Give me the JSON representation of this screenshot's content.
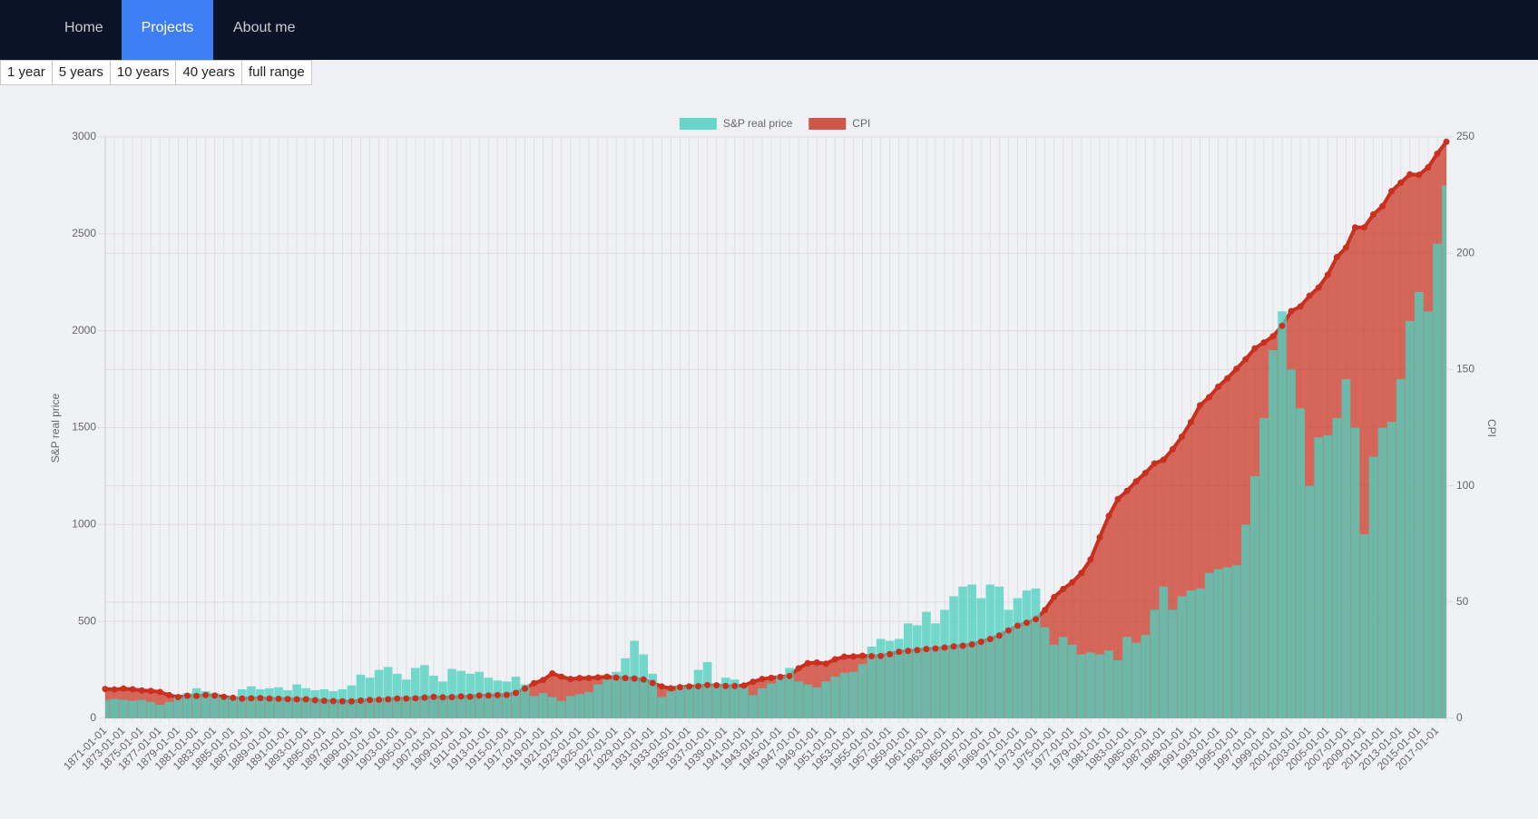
{
  "nav": [
    "Home",
    "Projects",
    "About me"
  ],
  "nav_active": 1,
  "range_buttons": [
    "1 year",
    "5 years",
    "10 years",
    "40 years",
    "full range"
  ],
  "chart_data": {
    "type": "bar",
    "ylabel": "S&P real price",
    "y2label": "CPI",
    "legend": "top",
    "grid": true,
    "ylim": [
      0,
      3000
    ],
    "yticks": [
      0,
      500,
      1000,
      1500,
      2000,
      2500,
      3000
    ],
    "y2lim": [
      0,
      250
    ],
    "y2ticks": [
      0,
      50,
      100,
      150,
      200,
      250
    ],
    "categories": [
      "1871-01-01",
      null,
      "1873-01-01",
      null,
      "1875-01-01",
      null,
      "1877-01-01",
      null,
      "1879-01-01",
      null,
      "1881-01-01",
      null,
      "1883-01-01",
      null,
      "1885-01-01",
      null,
      "1887-01-01",
      null,
      "1889-01-01",
      null,
      "1891-01-01",
      null,
      "1893-01-01",
      null,
      "1895-01-01",
      null,
      "1897-01-01",
      null,
      "1899-01-01",
      null,
      "1901-01-01",
      null,
      "1903-01-01",
      null,
      "1905-01-01",
      null,
      "1907-01-01",
      null,
      "1909-01-01",
      null,
      "1911-01-01",
      null,
      "1913-01-01",
      null,
      "1915-01-01",
      null,
      "1917-01-01",
      null,
      "1919-01-01",
      null,
      "1921-01-01",
      null,
      "1923-01-01",
      null,
      "1925-01-01",
      null,
      "1927-01-01",
      null,
      "1929-01-01",
      null,
      "1931-01-01",
      null,
      "1933-01-01",
      null,
      "1935-01-01",
      null,
      "1937-01-01",
      null,
      "1939-01-01",
      null,
      "1941-01-01",
      null,
      "1943-01-01",
      null,
      "1945-01-01",
      null,
      "1947-01-01",
      null,
      "1949-01-01",
      null,
      "1951-01-01",
      null,
      "1953-01-01",
      null,
      "1955-01-01",
      null,
      "1957-01-01",
      null,
      "1959-01-01",
      null,
      "1961-01-01",
      null,
      "1963-01-01",
      null,
      "1965-01-01",
      null,
      "1967-01-01",
      null,
      "1969-01-01",
      null,
      "1971-01-01",
      null,
      "1973-01-01",
      null,
      "1975-01-01",
      null,
      "1977-01-01",
      null,
      "1979-01-01",
      null,
      "1981-01-01",
      null,
      "1983-01-01",
      null,
      "1985-01-01",
      null,
      "1987-01-01",
      null,
      "1989-01-01",
      null,
      "1991-01-01",
      null,
      "1993-01-01",
      null,
      "1995-01-01",
      null,
      "1997-01-01",
      null,
      "1999-01-01",
      null,
      "2001-01-01",
      null,
      "2003-01-01",
      null,
      "2005-01-01",
      null,
      "2007-01-01",
      null,
      "2009-01-01",
      null,
      "2011-01-01",
      null,
      "2013-01-01",
      null,
      "2015-01-01",
      null,
      "2017-01-01",
      null
    ],
    "series": [
      {
        "name": "S&P real price",
        "type": "bar",
        "color": "#4fd1bf",
        "values": [
          95,
          100,
          95,
          90,
          95,
          85,
          70,
          85,
          110,
          130,
          155,
          140,
          130,
          110,
          115,
          150,
          165,
          150,
          155,
          160,
          145,
          175,
          155,
          145,
          150,
          140,
          150,
          170,
          225,
          210,
          250,
          265,
          230,
          200,
          260,
          275,
          220,
          190,
          255,
          245,
          230,
          240,
          210,
          195,
          190,
          215,
          175,
          115,
          130,
          110,
          90,
          115,
          125,
          135,
          175,
          200,
          240,
          310,
          400,
          330,
          230,
          110,
          140,
          170,
          165,
          250,
          290,
          180,
          210,
          200,
          160,
          120,
          155,
          180,
          220,
          260,
          190,
          175,
          160,
          190,
          215,
          235,
          240,
          280,
          370,
          410,
          400,
          410,
          490,
          480,
          550,
          490,
          560,
          630,
          680,
          690,
          620,
          690,
          680,
          560,
          620,
          660,
          670,
          470,
          380,
          420,
          380,
          330,
          340,
          330,
          350,
          300,
          420,
          390,
          430,
          560,
          680,
          560,
          630,
          660,
          670,
          750,
          770,
          780,
          790,
          1000,
          1250,
          1550,
          1900,
          2100,
          1800,
          1600,
          1200,
          1450,
          1460,
          1550,
          1750,
          1500,
          950,
          1350,
          1500,
          1530,
          1750,
          2050,
          2200,
          2100,
          2450,
          2750
        ]
      },
      {
        "name": "CPI",
        "type": "area",
        "axis": "y2",
        "color": "#c9301f",
        "values": [
          12.6,
          12.4,
          12.8,
          12.5,
          12,
          11.8,
          11.3,
          10,
          9.1,
          9.7,
          9.6,
          10,
          9.8,
          9.2,
          8.8,
          8.5,
          8.6,
          8.7,
          8.5,
          8.4,
          8.3,
          8.2,
          8.2,
          7.8,
          7.5,
          7.4,
          7.3,
          7.3,
          7.6,
          7.9,
          8,
          8.2,
          8.5,
          8.5,
          8.6,
          8.9,
          9.2,
          9,
          9.1,
          9.4,
          9.3,
          9.8,
          9.8,
          10,
          10.1,
          10.9,
          12.8,
          15.1,
          16.5,
          19.3,
          17.9,
          16.9,
          17.3,
          17.3,
          17.6,
          17.9,
          17.5,
          17.3,
          17.1,
          16.7,
          15.2,
          13.7,
          12.9,
          13.4,
          13.7,
          13.8,
          14.3,
          14.2,
          13.9,
          13.9,
          14.1,
          15.7,
          16.9,
          17.4,
          17.8,
          18.2,
          21.5,
          23.7,
          24,
          23.5,
          25.4,
          26.5,
          26.6,
          26.9,
          26.7,
          26.8,
          27.6,
          28.6,
          29,
          29.3,
          29.8,
          30,
          30.4,
          30.9,
          31.2,
          31.8,
          32.9,
          34.1,
          35.6,
          37.8,
          39.8,
          41.1,
          42.6,
          46.6,
          52.1,
          55.6,
          58.5,
          62.5,
          68.3,
          77.8,
          87,
          94.3,
          97.8,
          101.9,
          105.5,
          109.6,
          111.2,
          115.7,
          121.1,
          127.4,
          134.6,
          138.1,
          142.6,
          146.2,
          150.3,
          154.4,
          159.1,
          161.6,
          164.3,
          168.8,
          175.1,
          177.1,
          181.7,
          185.2,
          190.7,
          198.3,
          202.4,
          211.1,
          211.1,
          216.7,
          220.2,
          226.7,
          230.3,
          233.9,
          233.7,
          236.9,
          242.8,
          247.9
        ]
      }
    ]
  }
}
